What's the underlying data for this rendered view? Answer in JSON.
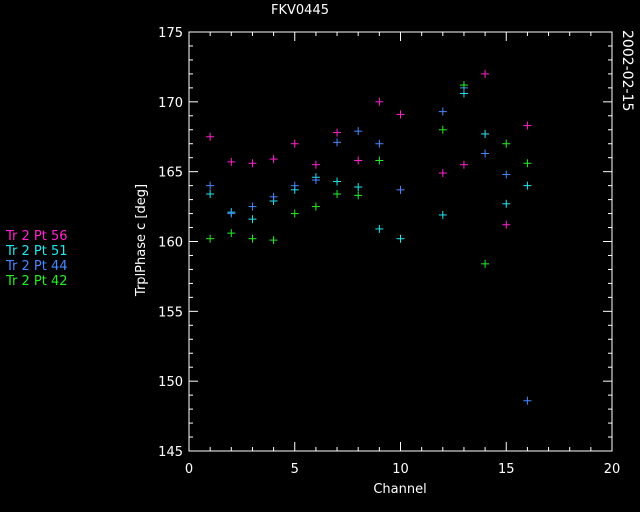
{
  "chart_data": {
    "type": "scatter",
    "title": "FKV0445",
    "date_label": "2002-02-15",
    "xlabel": "Channel",
    "ylabel": "TrplPhase c [deg]",
    "xlim": [
      0,
      20
    ],
    "ylim": [
      145,
      175
    ],
    "xticks": [
      0,
      5,
      10,
      15,
      20
    ],
    "yticks": [
      145,
      150,
      155,
      160,
      165,
      170,
      175
    ],
    "marker": "plus",
    "grid": false,
    "legend_position": "left",
    "series": [
      {
        "name": "Tr 2 Pt 56",
        "color": "#ff22cc",
        "points": [
          [
            1,
            167.5
          ],
          [
            2,
            165.7
          ],
          [
            3,
            165.6
          ],
          [
            4,
            165.9
          ],
          [
            5,
            167.0
          ],
          [
            6,
            165.5
          ],
          [
            7,
            167.8
          ],
          [
            8,
            165.8
          ],
          [
            9,
            170.0
          ],
          [
            10,
            169.1
          ],
          [
            12,
            164.9
          ],
          [
            13,
            165.5
          ],
          [
            14,
            172.0
          ],
          [
            15,
            161.2
          ],
          [
            16,
            168.3
          ]
        ]
      },
      {
        "name": "Tr 2 Pt 51",
        "color": "#22e8ee",
        "points": [
          [
            1,
            163.4
          ],
          [
            2,
            162.1
          ],
          [
            3,
            161.6
          ],
          [
            4,
            162.9
          ],
          [
            5,
            163.7
          ],
          [
            6,
            164.6
          ],
          [
            7,
            164.3
          ],
          [
            8,
            163.9
          ],
          [
            9,
            160.9
          ],
          [
            10,
            160.2
          ],
          [
            12,
            161.9
          ],
          [
            13,
            170.6
          ],
          [
            14,
            167.7
          ],
          [
            15,
            162.7
          ],
          [
            16,
            164.0
          ]
        ]
      },
      {
        "name": "Tr 2 Pt 44",
        "color": "#4488ff",
        "points": [
          [
            1,
            164.0
          ],
          [
            2,
            162.0
          ],
          [
            3,
            162.5
          ],
          [
            4,
            163.2
          ],
          [
            5,
            164.0
          ],
          [
            6,
            164.4
          ],
          [
            7,
            167.1
          ],
          [
            8,
            167.9
          ],
          [
            9,
            167.0
          ],
          [
            10,
            163.7
          ],
          [
            12,
            169.3
          ],
          [
            13,
            171.0
          ],
          [
            14,
            166.3
          ],
          [
            15,
            164.8
          ],
          [
            16,
            148.6
          ]
        ]
      },
      {
        "name": "Tr 2 Pt 42",
        "color": "#22ee22",
        "points": [
          [
            1,
            160.2
          ],
          [
            2,
            160.6
          ],
          [
            3,
            160.2
          ],
          [
            4,
            160.1
          ],
          [
            5,
            162.0
          ],
          [
            6,
            162.5
          ],
          [
            7,
            163.4
          ],
          [
            8,
            163.3
          ],
          [
            9,
            165.8
          ],
          [
            12,
            168.0
          ],
          [
            13,
            171.2
          ],
          [
            14,
            158.4
          ],
          [
            15,
            167.0
          ],
          [
            16,
            165.6
          ]
        ]
      }
    ]
  }
}
